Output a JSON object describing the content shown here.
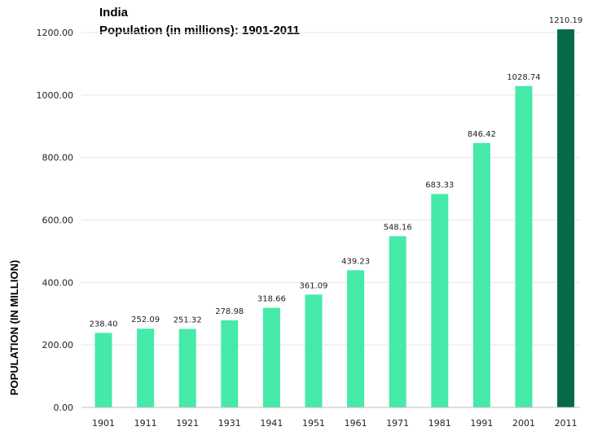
{
  "chart_data": {
    "type": "bar",
    "title_lines": [
      "India",
      "Population (in millions): 1901-2011"
    ],
    "xlabel": "",
    "ylabel": "POPULATION (IN MILLION)",
    "categories": [
      "1901",
      "1911",
      "1921",
      "1931",
      "1941",
      "1951",
      "1961",
      "1971",
      "1981",
      "1991",
      "2001",
      "2011"
    ],
    "values": [
      238.4,
      252.09,
      251.32,
      278.98,
      318.66,
      361.09,
      439.23,
      548.16,
      683.33,
      846.42,
      1028.74,
      1210.19
    ],
    "value_labels": [
      "238.40",
      "252.09",
      "251.32",
      "278.98",
      "318.66",
      "361.09",
      "439.23",
      "548.16",
      "683.33",
      "846.42",
      "1028.74",
      "1210.19"
    ],
    "ylim": [
      0,
      1200
    ],
    "y_ticks": [
      0,
      200,
      400,
      600,
      800,
      1000,
      1200
    ],
    "y_tick_labels": [
      "0.00",
      "200.00",
      "400.00",
      "600.00",
      "800.00",
      "1000.00",
      "1200.00"
    ],
    "grid": true,
    "colors": {
      "bar": "#45eaa9",
      "highlight_bar": "#056a48",
      "grid": "#e6e6e6"
    },
    "highlight_category": "2011"
  }
}
